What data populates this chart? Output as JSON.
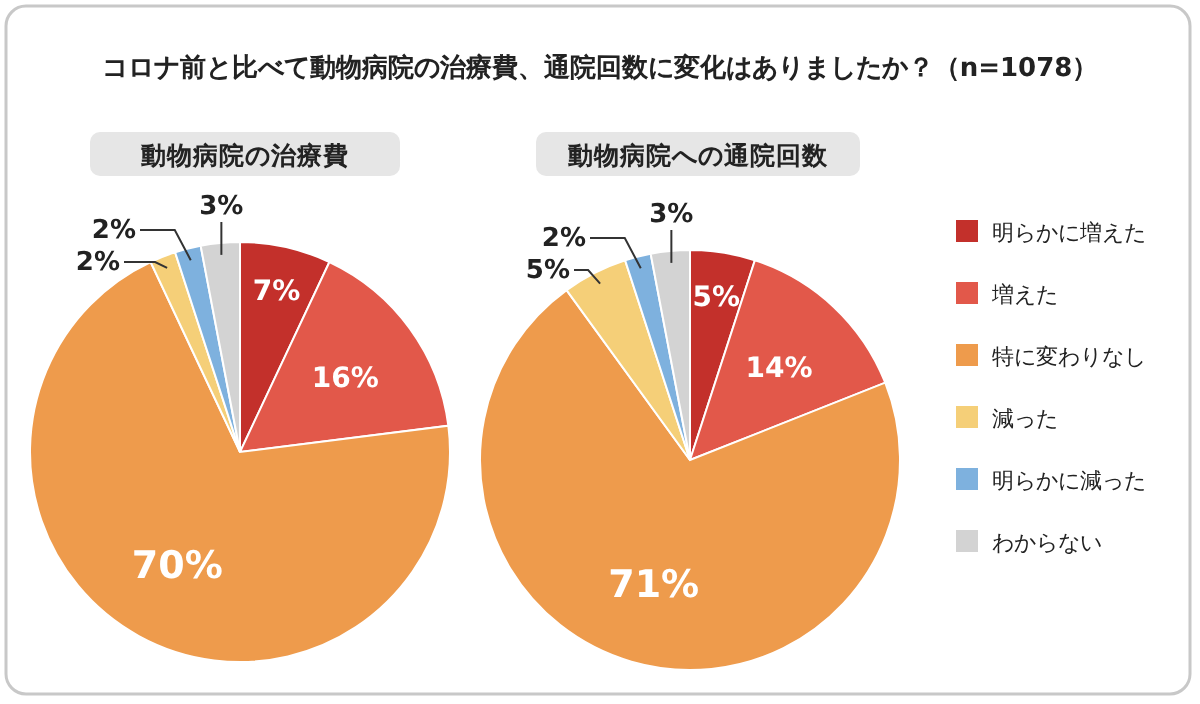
{
  "chart_data": [
    {
      "type": "pie",
      "title": "コロナ前と比べて動物病院の治療費、通院回数に変化はありましたか？（n=1078）",
      "subtitle": "動物病院の治療費",
      "categories": [
        null,
        null,
        null,
        null,
        null,
        null
      ],
      "values": [
        7,
        16,
        70,
        2,
        2,
        3
      ],
      "value_labels": [
        "7%",
        "16%",
        "70%",
        "2%",
        "2%",
        "3%"
      ],
      "colors": [
        "#c3302b",
        "#e2584a",
        "#ee9b4c",
        "#f5cf78",
        "#7eb1de",
        "#d3d3d3"
      ],
      "legend": false
    },
    {
      "type": "pie",
      "subtitle": "動物病院への通院回数",
      "categories": [
        "明らかに増えた",
        "増えた",
        "特に変わりなし",
        "減った",
        "明らかに減った",
        "わからない"
      ],
      "values": [
        5,
        14,
        71,
        5,
        2,
        3
      ],
      "value_labels": [
        "5%",
        "14%",
        "71%",
        "5%",
        "2%",
        "3%"
      ],
      "colors": [
        "#c3302b",
        "#e2584a",
        "#ee9b4c",
        "#f5cf78",
        "#7eb1de",
        "#d3d3d3"
      ],
      "legend": "right"
    }
  ]
}
